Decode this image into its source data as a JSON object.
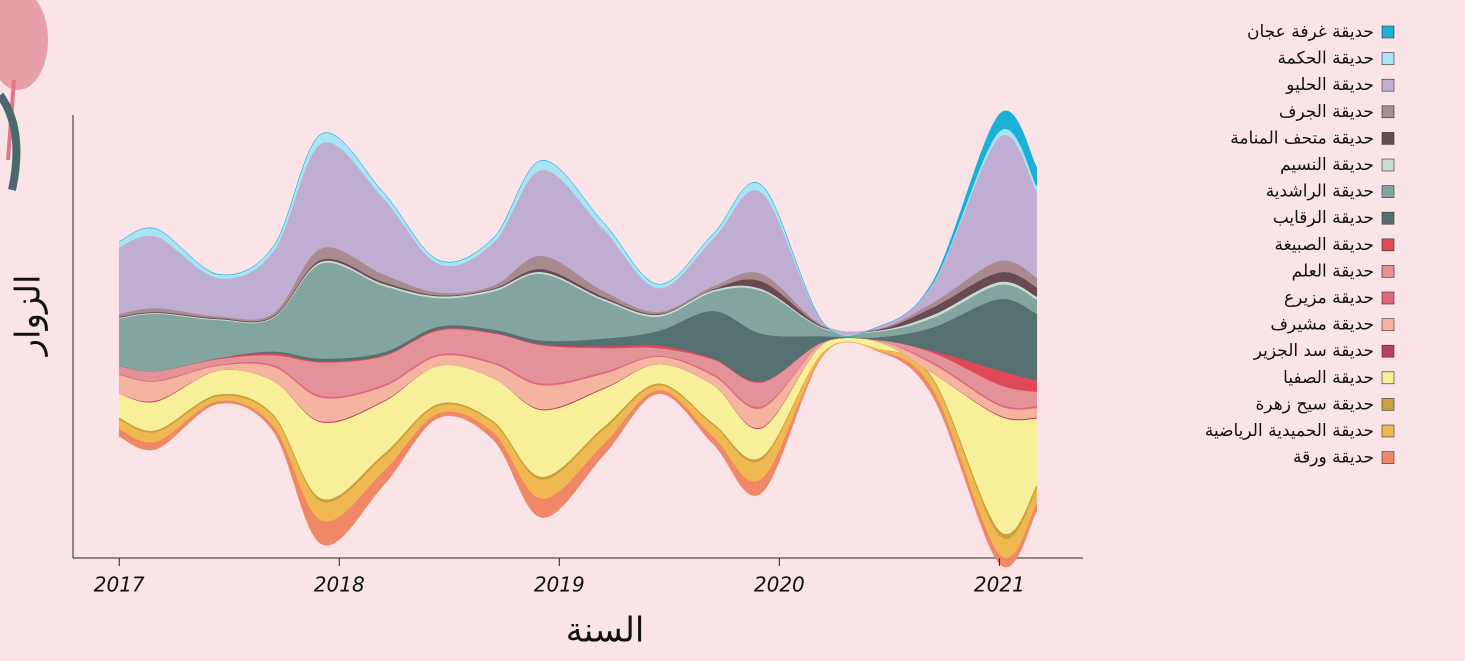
{
  "chart_data": {
    "type": "streamgraph",
    "x_label": "السنة",
    "y_label": "الزوار",
    "x": [
      2017,
      2017.17,
      2017.45,
      2017.7,
      2017.92,
      2018.2,
      2018.45,
      2018.7,
      2018.92,
      2019.2,
      2019.45,
      2019.7,
      2019.92,
      2020.2,
      2020.45,
      2020.7,
      2021,
      2021.17
    ],
    "xlim": [
      2016.79,
      2021.38
    ],
    "xticks": [
      2017,
      2018,
      2019,
      2020,
      2021
    ],
    "ylim": [
      -230,
      230
    ],
    "series": [
      {
        "name": "حديقة غرفة عجان",
        "color": "#1ab0d8",
        "values": [
          0,
          0,
          0,
          0,
          0,
          0,
          0,
          0,
          0,
          0,
          0,
          0,
          0,
          0,
          0,
          2,
          18,
          20
        ]
      },
      {
        "name": "حديقة الحكمة",
        "color": "#a8e4f4",
        "values": [
          6,
          8,
          4,
          5,
          10,
          6,
          4,
          5,
          10,
          7,
          4,
          5,
          8,
          0,
          0,
          1,
          6,
          6
        ]
      },
      {
        "name": "حديقة الحليو",
        "color": "#c0aed2",
        "values": [
          70,
          75,
          40,
          65,
          110,
          80,
          30,
          45,
          90,
          65,
          25,
          50,
          85,
          3,
          2,
          20,
          130,
          90
        ]
      },
      {
        "name": "حديقة الجرف",
        "color": "#a88a90",
        "values": [
          3,
          4,
          2,
          3,
          12,
          8,
          3,
          3,
          14,
          6,
          2,
          3,
          8,
          1,
          1,
          5,
          12,
          10
        ]
      },
      {
        "name": "حديقة متحف المنامة",
        "color": "#6a4a52",
        "values": [
          1,
          1,
          1,
          1,
          2,
          2,
          1,
          1,
          3,
          2,
          1,
          1,
          8,
          1,
          1,
          8,
          10,
          10
        ]
      },
      {
        "name": "حديقة النسيم",
        "color": "#c8dcd4",
        "values": [
          1,
          1,
          1,
          1,
          2,
          2,
          2,
          2,
          2,
          2,
          2,
          2,
          2,
          1,
          1,
          3,
          3,
          3
        ]
      },
      {
        "name": "حديقة الراشدية",
        "color": "#84a4a0",
        "values": [
          50,
          60,
          40,
          35,
          100,
          70,
          30,
          40,
          70,
          40,
          15,
          20,
          45,
          8,
          6,
          10,
          15,
          15
        ]
      },
      {
        "name": "حديقة الرقايب",
        "color": "#557070",
        "values": [
          0,
          0,
          0,
          2,
          3,
          3,
          3,
          3,
          4,
          8,
          15,
          50,
          50,
          6,
          3,
          25,
          75,
          70
        ]
      },
      {
        "name": "حديقة الصبيغة",
        "color": "#e04858",
        "values": [
          0,
          0,
          1,
          2,
          1,
          1,
          1,
          1,
          1,
          2,
          3,
          1,
          1,
          0,
          0,
          2,
          15,
          12
        ]
      },
      {
        "name": "حديقة العلم",
        "color": "#e4929a",
        "values": [
          8,
          10,
          6,
          10,
          35,
          30,
          25,
          30,
          40,
          25,
          8,
          15,
          25,
          1,
          1,
          10,
          20,
          15
        ]
      },
      {
        "name": "حديقة مزيرع",
        "color": "#e06880",
        "values": [
          1,
          1,
          1,
          2,
          2,
          2,
          2,
          2,
          2,
          2,
          1,
          2,
          2,
          0,
          0,
          2,
          2,
          2
        ]
      },
      {
        "name": "حديقة مشيرف",
        "color": "#f4b4a0",
        "values": [
          20,
          20,
          5,
          15,
          25,
          15,
          10,
          15,
          25,
          15,
          8,
          10,
          20,
          1,
          1,
          10,
          10,
          10
        ]
      },
      {
        "name": "حديقة سد الجزير",
        "color": "#b84060",
        "values": [
          0,
          1,
          0,
          0,
          1,
          1,
          0,
          0,
          1,
          1,
          0,
          0,
          1,
          0,
          0,
          0,
          1,
          1
        ]
      },
      {
        "name": "حديقة الصفيا",
        "color": "#f8f098",
        "values": [
          25,
          30,
          25,
          35,
          80,
          55,
          40,
          45,
          70,
          40,
          20,
          40,
          30,
          8,
          7,
          5,
          120,
          70
        ]
      },
      {
        "name": "حديقة سيح زهرة",
        "color": "#c8a040",
        "values": [
          2,
          2,
          2,
          2,
          3,
          3,
          2,
          2,
          3,
          3,
          2,
          2,
          3,
          0,
          0,
          2,
          5,
          4
        ]
      },
      {
        "name": "حديقة الحميدية الرياضية",
        "color": "#f0b850",
        "values": [
          10,
          10,
          5,
          10,
          20,
          15,
          8,
          10,
          20,
          15,
          5,
          12,
          20,
          3,
          2,
          10,
          20,
          15
        ]
      },
      {
        "name": "حديقة ورقة",
        "color": "#f08868",
        "values": [
          8,
          8,
          3,
          6,
          25,
          15,
          5,
          8,
          20,
          12,
          4,
          8,
          15,
          1,
          1,
          8,
          10,
          8
        ]
      }
    ]
  }
}
